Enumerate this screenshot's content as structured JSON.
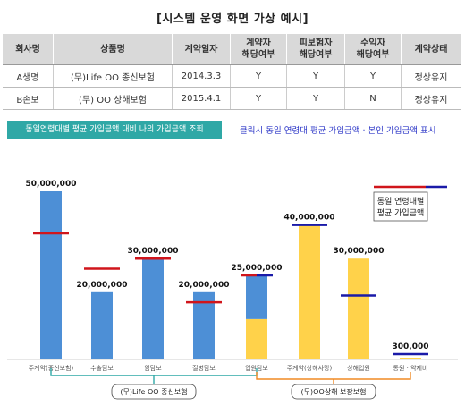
{
  "page_title": "[시스템 운영 화면 가상 예시]",
  "table": {
    "headers": [
      "회사명",
      "상품명",
      "계약일자",
      "계약자\n해당여부",
      "피보험자\n해당여부",
      "수익자\n해당여부",
      "계약상태"
    ],
    "rows": [
      [
        "A생명",
        "(무)Life OO 종신보험",
        "2014.3.3",
        "Y",
        "Y",
        "Y",
        "정상유지"
      ],
      [
        "B손보",
        "(무) OO 상해보험",
        "2015.4.1",
        "Y",
        "Y",
        "N",
        "정상유지"
      ]
    ]
  },
  "compare_button_label": "동일연령대별 평균 가입금액 대비 나의 가입금액 조회",
  "click_note": "클릭시 동일 연령대 평균 가입금액 · 본인 가입금액 표시",
  "legend_label_line1": "동일 연령대별",
  "legend_label_line2": "평균 가입금액",
  "colors": {
    "blue_bar": "#4d8fd6",
    "yellow_bar": "#ffd24a",
    "red_line": "#d0151b",
    "navy_line": "#1a1aa8",
    "teal": "#2fa8a6"
  },
  "chart_data": {
    "type": "bar",
    "categories": [
      "주계약(종신보험)",
      "수술담보",
      "암담보",
      "질병담보",
      "입원담보",
      "주계약(상해사망)",
      "상해입원",
      "통원 · 약제비"
    ],
    "values": [
      50000000,
      20000000,
      30000000,
      20000000,
      25000000,
      40000000,
      30000000,
      300000
    ],
    "value_labels": [
      "50,000,000",
      "20,000,000",
      "30,000,000",
      "20,000,000",
      "25,000,000",
      "40,000,000",
      "30,000,000",
      "300,000"
    ],
    "series_split": {
      "index": 4,
      "life_part": 13000000,
      "nonlife_part": 12000000
    },
    "averages": [
      37500000,
      27000000,
      30000000,
      17000000,
      25000000,
      40000000,
      19000000,
      300000
    ],
    "groups": [
      {
        "label": "(무)Life OO 종신보험",
        "categories": [
          0,
          1,
          2,
          3,
          4
        ]
      },
      {
        "label": "(무)OO상해 보장보험",
        "categories": [
          4,
          5,
          6,
          7
        ]
      }
    ],
    "ylim": [
      0,
      50000000
    ]
  }
}
